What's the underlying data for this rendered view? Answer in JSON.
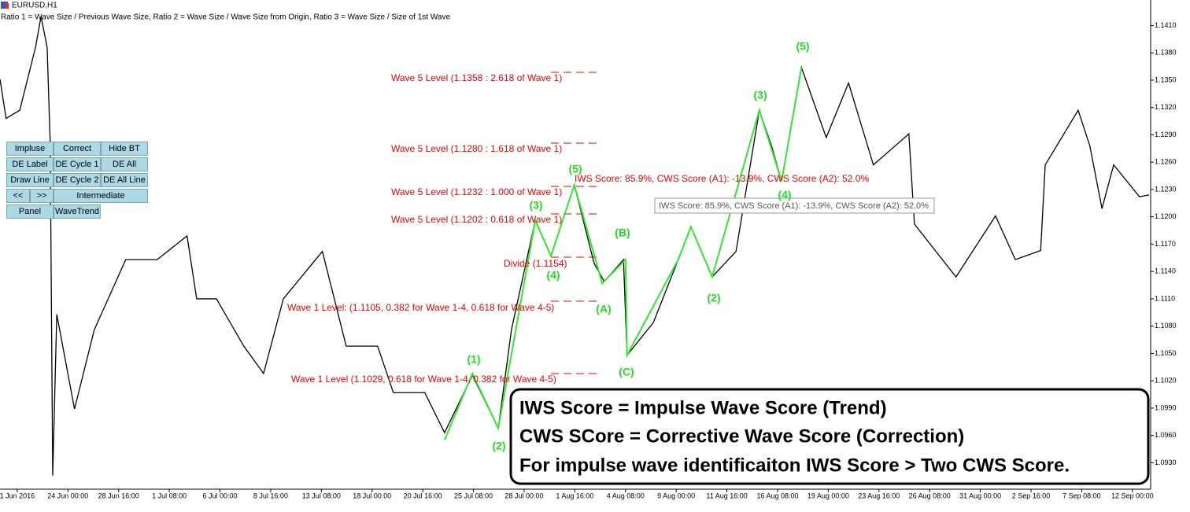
{
  "header": {
    "symbol": "EURUSD,H1",
    "legend": "Ratio 1 = Wave Size / Previous Wave Size, Ratio 2 = Wave Size / Wave Size from Origin, Ratio 3 = Wave Size / Size of 1st Wave"
  },
  "toolbar": {
    "buttons": [
      "Impluse",
      "Correct",
      "Hide BT",
      "DE Label",
      "DE Cycle 1",
      "DE All",
      "Draw Line",
      "DE Cycle 2",
      "DE All Line",
      "<<",
      ">>",
      "Intermediate",
      "Panel",
      "WaveTrend"
    ]
  },
  "chart_data": {
    "type": "line",
    "xlim": [
      -0.34,
      22.36
    ],
    "xticks": [
      {
        "value": 0,
        "label": "1 Jun 2016"
      },
      {
        "value": 1,
        "label": "24 Jun 00:00"
      },
      {
        "value": 2,
        "label": "28 Jun 16:00"
      },
      {
        "value": 3,
        "label": "1 Jul 08:00"
      },
      {
        "value": 4,
        "label": "6 Jul 00:00"
      },
      {
        "value": 5,
        "label": "8 Jul 16:00"
      },
      {
        "value": 6,
        "label": "13 Jul 08:00"
      },
      {
        "value": 7,
        "label": "18 Jul 00:00"
      },
      {
        "value": 8,
        "label": "20 Jul 16:00"
      },
      {
        "value": 9,
        "label": "25 Jul 08:00"
      },
      {
        "value": 10,
        "label": "28 Jul 00:00"
      },
      {
        "value": 11,
        "label": "1 Aug 16:00"
      },
      {
        "value": 12,
        "label": "4 Aug 08:00"
      },
      {
        "value": 13,
        "label": "9 Aug 00:00"
      },
      {
        "value": 14,
        "label": "11 Aug 16:00"
      },
      {
        "value": 15,
        "label": "16 Aug 08:00"
      },
      {
        "value": 16,
        "label": "19 Aug 00:00"
      },
      {
        "value": 17,
        "label": "23 Aug 16:00"
      },
      {
        "value": 18,
        "label": "26 Aug 08:00"
      },
      {
        "value": 19,
        "label": "31 Aug 00:00"
      },
      {
        "value": 20,
        "label": "2 Sep 16:00"
      },
      {
        "value": 21,
        "label": "7 Sep 08:00"
      },
      {
        "value": 22,
        "label": "12 Sep 00:00"
      }
    ],
    "ylim": [
      1.0901,
      1.1438
    ],
    "yticks": [
      {
        "value": 1.141,
        "label": "1.1410"
      },
      {
        "value": 1.138,
        "label": "1.1380"
      },
      {
        "value": 1.135,
        "label": "1.1350"
      },
      {
        "value": 1.132,
        "label": "1.1320"
      },
      {
        "value": 1.129,
        "label": "1.1290"
      },
      {
        "value": 1.126,
        "label": "1.1260"
      },
      {
        "value": 1.123,
        "label": "1.1230"
      },
      {
        "value": 1.12,
        "label": "1.1200"
      },
      {
        "value": 1.117,
        "label": "1.1170"
      },
      {
        "value": 1.114,
        "label": "1.1140"
      },
      {
        "value": 1.111,
        "label": "1.1110"
      },
      {
        "value": 1.108,
        "label": "1.1080"
      },
      {
        "value": 1.105,
        "label": "1.1050"
      },
      {
        "value": 1.102,
        "label": "1.1020"
      },
      {
        "value": 1.099,
        "label": "1.0990"
      },
      {
        "value": 1.096,
        "label": "1.0960"
      },
      {
        "value": 1.093,
        "label": "1.0930"
      }
    ],
    "series": [
      {
        "color": "#000000",
        "x": [
          -0.34,
          -0.22,
          0.05,
          0.36,
          0.47,
          0.59,
          0.65,
          0.7,
          0.78,
          1.13,
          1.52,
          2.14,
          2.76,
          3.35,
          3.54,
          3.93,
          4.47,
          4.86,
          5.25,
          6.02,
          6.49,
          7.11,
          7.42,
          8.04,
          8.43,
          8.98,
          9.49,
          9.75,
          10.22,
          10.53,
          10.99,
          11.38,
          11.58,
          11.96,
          12.03,
          12.55,
          13.04,
          13.29,
          13.71,
          14.18,
          14.64,
          14.88,
          15.08,
          15.47,
          15.96,
          16.4,
          16.89,
          17.59,
          17.7,
          18.52,
          19.3,
          19.69,
          20.19,
          20.28,
          20.93,
          21.16,
          21.4,
          21.63,
          22.14,
          22.33
        ],
        "values": [
          1.1351,
          1.1308,
          1.1317,
          1.1386,
          1.142,
          1.1386,
          1.1282,
          1.0916,
          1.1093,
          1.0989,
          1.1076,
          1.1153,
          1.1153,
          1.1179,
          1.111,
          1.111,
          1.1058,
          1.1028,
          1.111,
          1.1162,
          1.1058,
          1.1058,
          1.1007,
          1.1007,
          1.0963,
          1.1026,
          1.0968,
          1.1076,
          1.1196,
          1.1157,
          1.1235,
          1.1149,
          1.1129,
          1.1153,
          1.1048,
          1.1084,
          1.1153,
          1.1189,
          1.1134,
          1.1162,
          1.1317,
          1.1278,
          1.1239,
          1.1364,
          1.1287,
          1.1347,
          1.1257,
          1.1291,
          1.1192,
          1.1134,
          1.1201,
          1.1153,
          1.1163,
          1.1257,
          1.1317,
          1.1278,
          1.1209,
          1.1257,
          1.1222,
          1.1224
        ]
      },
      {
        "color": "#33e633",
        "x": [
          8.43,
          8.98,
          9.49,
          10.22,
          10.53,
          10.99,
          11.54,
          12.0,
          12.03,
          13.04,
          13.29,
          13.71,
          14.64,
          15.08,
          15.47
        ],
        "values": [
          1.0955,
          1.1028,
          1.0968,
          1.1196,
          1.1157,
          1.1235,
          1.1127,
          1.1153,
          1.1048,
          1.1153,
          1.1189,
          1.1134,
          1.1317,
          1.1239,
          1.1364
        ]
      }
    ]
  },
  "annotations": {
    "levels": [
      "Wave 5 Level (1.1358 : 2.618 of Wave 1)",
      "Wave 5 Level (1.1280 : 1.618 of Wave 1)",
      "Wave 5 Level (1.1232 : 1.000 of Wave 1)",
      "Wave 5 Level (1.1202 : 0.618 of Wave 1)",
      "Divide (1.1154)",
      "Wave 1 Level: (1.1105, 0.382 for Wave 1-4, 0.618 for Wave 4-5)",
      "Wave 1 Level (1.1029, 0.618 for Wave 1-4, 0.382 for Wave 4-5)"
    ],
    "wave_labels": [
      "(1)",
      "(2)",
      "(3)",
      "(4)",
      "(5)",
      "(A)",
      "(B)",
      "(C)",
      "(2)",
      "(3)",
      "(4)",
      "(5)"
    ],
    "score": "IWS Score: 85.9%, CWS Score (A1): -13.9%, CWS Score (A2): 52.0%",
    "tooltip": "IWS Score: 85.9%, CWS Score (A1): -13.9%, CWS Score (A2): 52.0%"
  },
  "note_box": {
    "lines": [
      "IWS Score = Impulse Wave Score (Trend)",
      "CWS SCore = Corrective Wave Score (Correction)",
      "For impulse wave identificaiton IWS Score > Two CWS Score."
    ]
  }
}
